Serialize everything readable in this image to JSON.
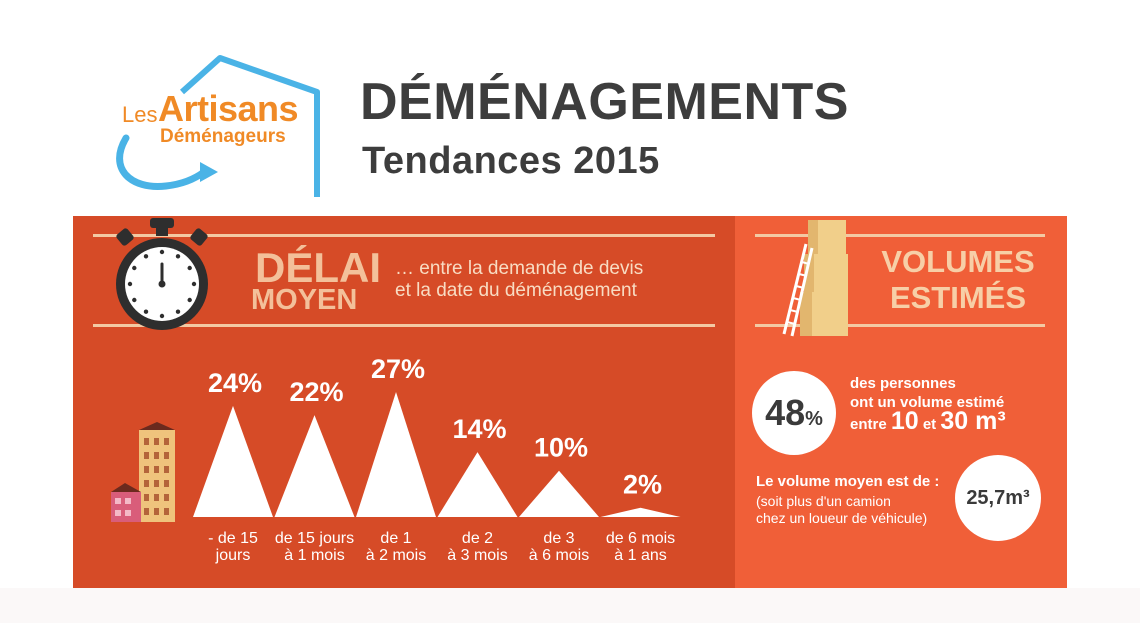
{
  "logo": {
    "les": "Les",
    "artisans": "Artisans",
    "demenageurs": "Déménageurs"
  },
  "header": {
    "title": "DÉMÉNAGEMENTS",
    "subtitle": "Tendances 2015"
  },
  "delai": {
    "title_line1": "DÉLAI",
    "title_line2": "MOYEN",
    "description_line1": "… entre la demande de devis",
    "description_line2": "et la date du déménagement"
  },
  "volumes": {
    "title_line1": "VOLUMES",
    "title_line2": "ESTIMÉS",
    "stat_value": "48",
    "stat_unit": "%",
    "stat_line1": "des personnes",
    "stat_line2": "ont un volume estimé",
    "stat_line3_pre": "entre ",
    "stat_line3_a": "10",
    "stat_line3_mid": " et ",
    "stat_line3_b": "30 m³",
    "average_label": "Le volume moyen est de :",
    "average_sub1": "(soit plus d'un camion",
    "average_sub2": "chez un loueur de véhicule)",
    "average_value": "25,7m³"
  },
  "colors": {
    "panel_left": "#d64b27",
    "panel_right": "#f05f38",
    "accent_cream": "#f3c09a",
    "logo_orange": "#f08a26",
    "logo_blue": "#4ab3e6",
    "title_gray": "#3d3d3d"
  },
  "chart_data": {
    "type": "area",
    "title": "DÉLAI MOYEN",
    "unit": "%",
    "ylim": [
      0,
      27
    ],
    "categories": [
      [
        "- de 15",
        "jours"
      ],
      [
        "de 15 jours",
        "à 1 mois"
      ],
      [
        "de 1",
        "à 2 mois"
      ],
      [
        "de 2",
        "à 3 mois"
      ],
      [
        "de 3",
        "à 6 mois"
      ],
      [
        "de 6 mois",
        "à 1 ans"
      ]
    ],
    "values": [
      24,
      22,
      27,
      14,
      10,
      2
    ],
    "labels": [
      "24%",
      "22%",
      "27%",
      "14%",
      "10%",
      "2%"
    ]
  }
}
